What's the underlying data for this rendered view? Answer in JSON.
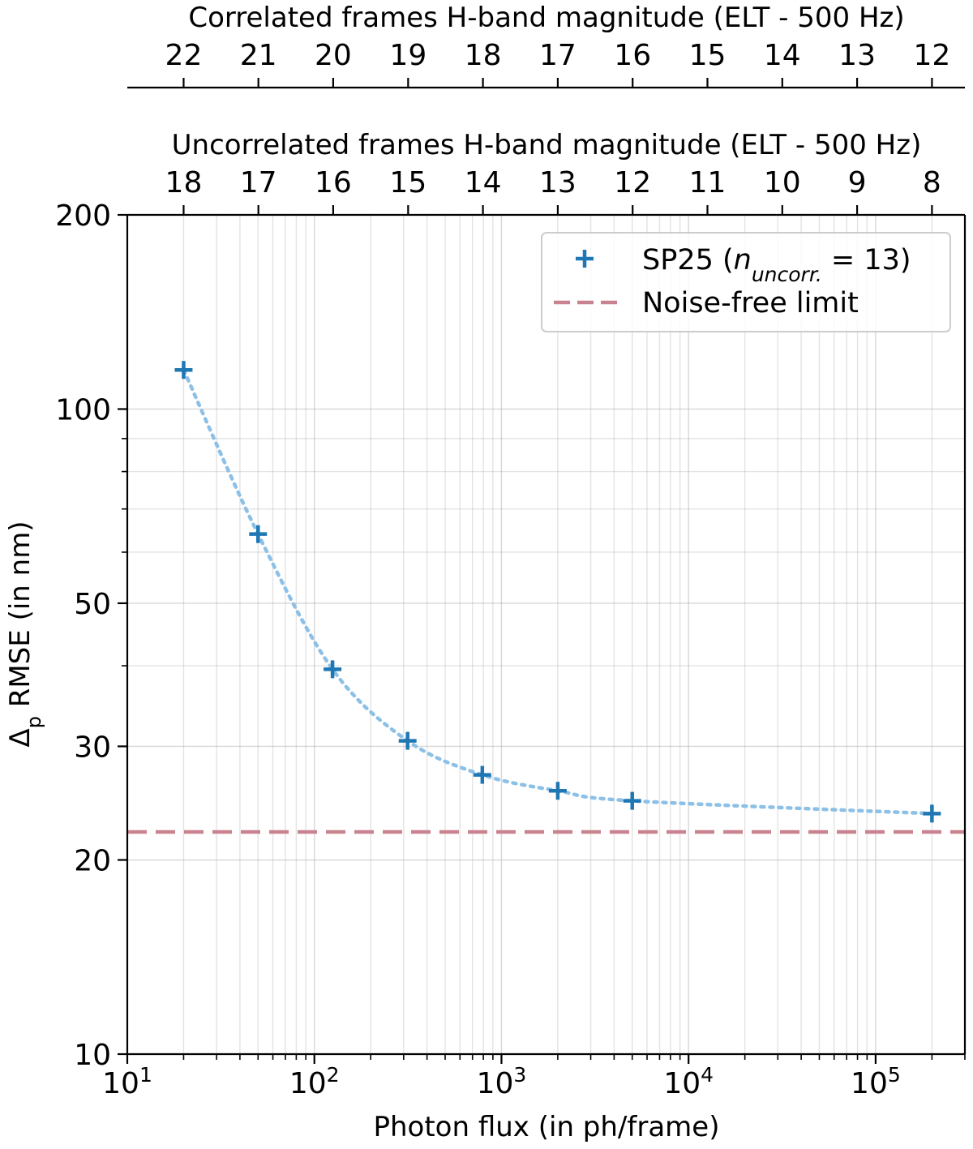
{
  "chart_data": {
    "type": "scatter",
    "title": "",
    "xlabel": "Photon flux (in ph/frame)",
    "ylabel_symbol": "Δ",
    "ylabel_subscript": "p",
    "ylabel_rest": " RMSE (in nm)",
    "xscale": "log",
    "yscale": "log",
    "xlim": [
      10,
      300000
    ],
    "ylim": [
      10,
      200
    ],
    "x_ticks": [
      {
        "value": 10,
        "base": "10",
        "exp": "1"
      },
      {
        "value": 100,
        "base": "10",
        "exp": "2"
      },
      {
        "value": 1000,
        "base": "10",
        "exp": "3"
      },
      {
        "value": 10000,
        "base": "10",
        "exp": "4"
      },
      {
        "value": 100000,
        "base": "10",
        "exp": "5"
      }
    ],
    "y_ticks": [
      {
        "value": 10,
        "label": "10"
      },
      {
        "value": 20,
        "label": "20"
      },
      {
        "value": 30,
        "label": "30"
      },
      {
        "value": 50,
        "label": "50"
      },
      {
        "value": 100,
        "label": "100"
      },
      {
        "value": 200,
        "label": "200"
      }
    ],
    "y_minor_ticks": [
      40,
      60,
      70,
      80,
      90
    ],
    "top_axes": [
      {
        "label": "Correlated frames H-band magnitude (ELT - 500 Hz)",
        "ticks": [
          {
            "flux": 20,
            "label": "22"
          },
          {
            "flux": 50.2,
            "label": "21"
          },
          {
            "flux": 126,
            "label": "20"
          },
          {
            "flux": 317,
            "label": "19"
          },
          {
            "flux": 796,
            "label": "18"
          },
          {
            "flux": 2000,
            "label": "17"
          },
          {
            "flux": 5024,
            "label": "16"
          },
          {
            "flux": 12619,
            "label": "15"
          },
          {
            "flux": 31698,
            "label": "14"
          },
          {
            "flux": 79621,
            "label": "13"
          },
          {
            "flux": 200000,
            "label": "12"
          }
        ]
      },
      {
        "label": "Uncorrelated frames H-band magnitude (ELT - 500 Hz)",
        "ticks": [
          {
            "flux": 20,
            "label": "18"
          },
          {
            "flux": 50.2,
            "label": "17"
          },
          {
            "flux": 126,
            "label": "16"
          },
          {
            "flux": 317,
            "label": "15"
          },
          {
            "flux": 796,
            "label": "14"
          },
          {
            "flux": 2000,
            "label": "13"
          },
          {
            "flux": 5024,
            "label": "12"
          },
          {
            "flux": 12619,
            "label": "11"
          },
          {
            "flux": 31698,
            "label": "10"
          },
          {
            "flux": 79621,
            "label": "9"
          },
          {
            "flux": 200000,
            "label": "8"
          }
        ]
      }
    ],
    "series": [
      {
        "name": "SP25",
        "legend_base": "SP25 (",
        "legend_n": "n",
        "legend_sub": "uncorr.",
        "legend_eq": " = 13)",
        "marker": "+",
        "color": "#1f77b4",
        "line_color": "#8cc0e6",
        "x": [
          20,
          50,
          125,
          315,
          790,
          2000,
          5000,
          200000
        ],
        "y": [
          115,
          64,
          39.5,
          30.6,
          27.1,
          25.6,
          24.7,
          23.6
        ]
      }
    ],
    "reference_lines": [
      {
        "name": "Noise-free limit",
        "y": 22.1,
        "color": "#c9828f",
        "style": "dashed"
      }
    ],
    "legend_position": "upper right",
    "grid": true
  }
}
